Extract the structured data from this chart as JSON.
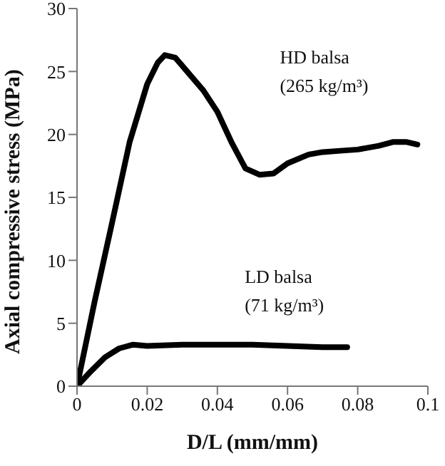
{
  "chart_data": {
    "type": "line",
    "xlabel": "D/L (mm/mm)",
    "ylabel": "Axial compressive stress (MPa)",
    "xlim": [
      0,
      0.1
    ],
    "xticks": [
      0,
      0.02,
      0.04,
      0.06,
      0.08,
      0.1
    ],
    "ylim": [
      0,
      30
    ],
    "yticks": [
      0,
      5,
      10,
      15,
      20,
      25,
      30
    ],
    "grid": false,
    "legend": false,
    "marker": "none",
    "line_style": "solid",
    "series": [
      {
        "name": "HD balsa (265 kg/m³)",
        "color": "#000000",
        "x": [
          0,
          0.005,
          0.01,
          0.015,
          0.02,
          0.023,
          0.025,
          0.028,
          0.032,
          0.036,
          0.04,
          0.044,
          0.048,
          0.052,
          0.056,
          0.06,
          0.066,
          0.07,
          0.075,
          0.08,
          0.086,
          0.09,
          0.094,
          0.097
        ],
        "values": [
          0,
          6.7,
          13,
          19.4,
          24,
          25.7,
          26.3,
          26.1,
          24.8,
          23.5,
          21.8,
          19.4,
          17.3,
          16.8,
          16.9,
          17.7,
          18.4,
          18.6,
          18.7,
          18.8,
          19.1,
          19.4,
          19.4,
          19.2
        ]
      },
      {
        "name": "LD balsa (71 kg/m³)",
        "color": "#000000",
        "x": [
          0,
          0.004,
          0.008,
          0.012,
          0.016,
          0.02,
          0.03,
          0.04,
          0.05,
          0.06,
          0.07,
          0.077
        ],
        "values": [
          0,
          1.2,
          2.3,
          3.0,
          3.3,
          3.2,
          3.3,
          3.3,
          3.3,
          3.2,
          3.1,
          3.1
        ]
      }
    ]
  }
}
